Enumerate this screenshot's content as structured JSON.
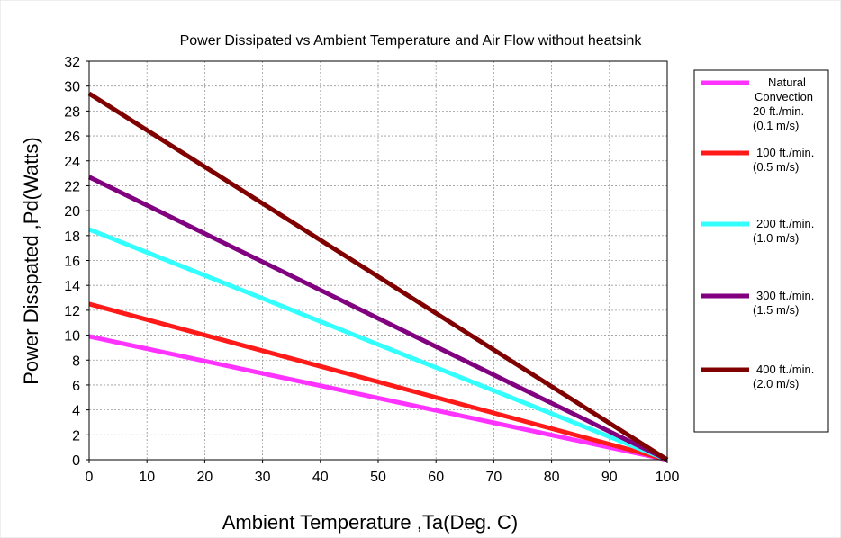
{
  "chart_data": {
    "type": "line",
    "title": "Power Dissipated vs Ambient Temperature and Air Flow without heatsink",
    "xlabel": "Ambient Temperature ,Ta(Deg. C)",
    "ylabel": "Power Disspated ,Pd(Watts)",
    "xlim": [
      0,
      100
    ],
    "ylim": [
      0,
      32
    ],
    "xticks": [
      0,
      10,
      20,
      30,
      40,
      50,
      60,
      70,
      80,
      90,
      100
    ],
    "yticks": [
      0,
      2,
      4,
      6,
      8,
      10,
      12,
      14,
      16,
      18,
      20,
      22,
      24,
      26,
      28,
      30,
      32
    ],
    "grid": true,
    "legend_position": "right",
    "series": [
      {
        "legend_lines": [
          "Natural",
          "Convection",
          "20 ft./min.",
          "(0.1 m/s)"
        ],
        "color": "#ff33ff",
        "x": [
          0,
          100
        ],
        "y": [
          9.9,
          0
        ]
      },
      {
        "legend_lines": [
          "100 ft./min.",
          "(0.5 m/s)"
        ],
        "color": "#ff1a1a",
        "x": [
          0,
          100
        ],
        "y": [
          12.5,
          0
        ]
      },
      {
        "legend_lines": [
          "200 ft./min.",
          "(1.0 m/s)"
        ],
        "color": "#33ffff",
        "x": [
          0,
          100
        ],
        "y": [
          18.5,
          0
        ]
      },
      {
        "legend_lines": [
          "300 ft./min.",
          "(1.5 m/s)"
        ],
        "color": "#800080",
        "x": [
          0,
          100
        ],
        "y": [
          22.7,
          0
        ]
      },
      {
        "legend_lines": [
          "400 ft./min.",
          "(2.0 m/s)"
        ],
        "color": "#800000",
        "x": [
          0,
          100
        ],
        "y": [
          29.4,
          0
        ]
      }
    ]
  }
}
